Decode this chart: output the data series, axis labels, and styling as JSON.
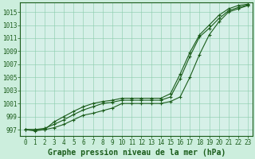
{
  "title": "Graphe pression niveau de la mer (hPa)",
  "x_labels": [
    "0",
    "1",
    "2",
    "3",
    "4",
    "5",
    "6",
    "7",
    "8",
    "9",
    "10",
    "11",
    "12",
    "13",
    "14",
    "15",
    "16",
    "17",
    "18",
    "19",
    "20",
    "21",
    "22",
    "23"
  ],
  "x_values": [
    0,
    1,
    2,
    3,
    4,
    5,
    6,
    7,
    8,
    9,
    10,
    11,
    12,
    13,
    14,
    15,
    16,
    17,
    18,
    19,
    20,
    21,
    22,
    23
  ],
  "ylim": [
    996.0,
    1016.5
  ],
  "yticks": [
    997,
    999,
    1001,
    1003,
    1005,
    1007,
    1009,
    1011,
    1013,
    1015
  ],
  "line1": [
    997.0,
    996.8,
    997.0,
    997.3,
    997.8,
    998.5,
    999.2,
    999.5,
    999.9,
    1000.3,
    1001.0,
    1001.0,
    1001.0,
    1001.0,
    1001.0,
    1001.3,
    1002.0,
    1005.0,
    1008.5,
    1011.5,
    1013.5,
    1015.0,
    1015.5,
    1016.0
  ],
  "line2": [
    997.0,
    997.0,
    997.2,
    997.8,
    998.5,
    999.3,
    1000.0,
    1000.5,
    1001.0,
    1001.2,
    1001.5,
    1001.5,
    1001.5,
    1001.5,
    1001.5,
    1002.0,
    1004.8,
    1008.2,
    1011.2,
    1012.5,
    1014.0,
    1015.2,
    1015.7,
    1016.1
  ],
  "line3": [
    997.0,
    997.0,
    997.0,
    998.2,
    999.0,
    999.8,
    1000.5,
    1001.0,
    1001.3,
    1001.5,
    1001.8,
    1001.8,
    1001.8,
    1001.8,
    1001.8,
    1002.5,
    1005.5,
    1008.8,
    1011.5,
    1013.0,
    1014.5,
    1015.5,
    1016.0,
    1016.2
  ],
  "line_color": "#1a5c1a",
  "bg_color": "#cceedd",
  "plot_bg": "#d6f0e8",
  "grid_color": "#88ccaa",
  "title_color": "#1a5c1a",
  "title_fontsize": 7.0,
  "tick_fontsize": 5.5,
  "marker": "+",
  "markersize": 3.0,
  "linewidth": 0.8
}
